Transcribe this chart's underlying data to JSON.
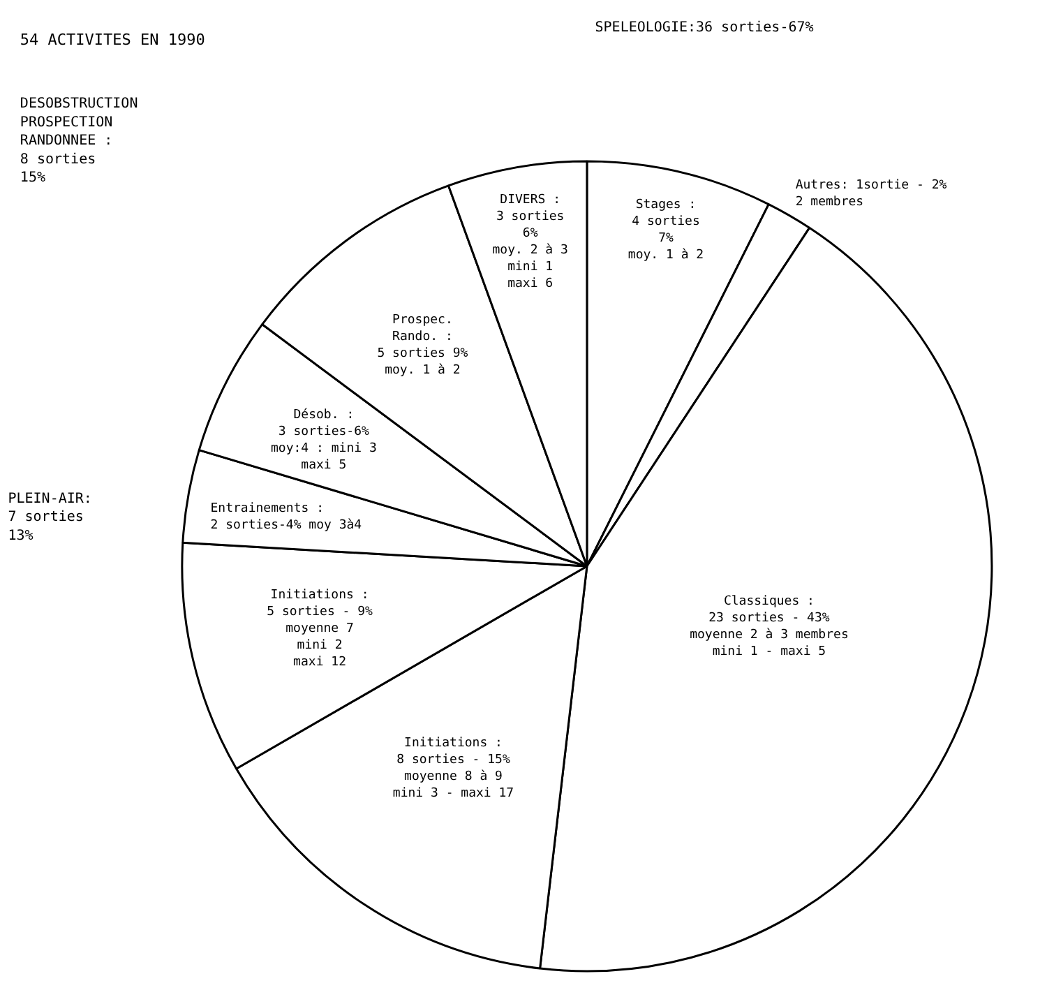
{
  "chart_data": {
    "type": "pie",
    "title": "54 ACTIVITES EN 1990",
    "categories": [
      "Stages :\n4 sorties\n7%\nmoy. 1 à 2",
      "Autres: 1sortie - 2%\n2 membres",
      "Classiques :\n23 sorties - 43%\nmoyenne 2 à 3 membres\nmini 1 - maxi 5",
      "Initiations :\n8 sorties - 15%\nmoyenne 8 à 9\nmini 3 - maxi 17",
      "Initiations :\n5 sorties - 9%\nmoyenne 7\nmini 2\nmaxi 12",
      "Entrainements :\n2 sorties-4% moy 3à4",
      "Désob. :\n3 sorties-6%\nmoy:4 : mini 3\nmaxi 5",
      "Prospec.\nRando. :\n5 sorties 9%\nmoy. 1 à 2",
      "DIVERS :\n3 sorties\n6%\nmoy. 2 à 3\nmini 1\nmaxi 6"
    ],
    "values": [
      4,
      1,
      23,
      8,
      5,
      2,
      3,
      5,
      3
    ],
    "colors": [
      "#ffffff",
      "#ffffff",
      "#ffffff",
      "#ffffff",
      "#ffffff",
      "#ffffff",
      "#ffffff",
      "#ffffff",
      "#ffffff"
    ],
    "annotations": [
      "SPELEOLOGIE:36 sorties-67%",
      "PLEIN-AIR:\n7 sorties\n13%",
      "DESOBSTRUCTION\nPROSPECTION\nRANDONNEE :\n8 sorties\n15%"
    ]
  }
}
